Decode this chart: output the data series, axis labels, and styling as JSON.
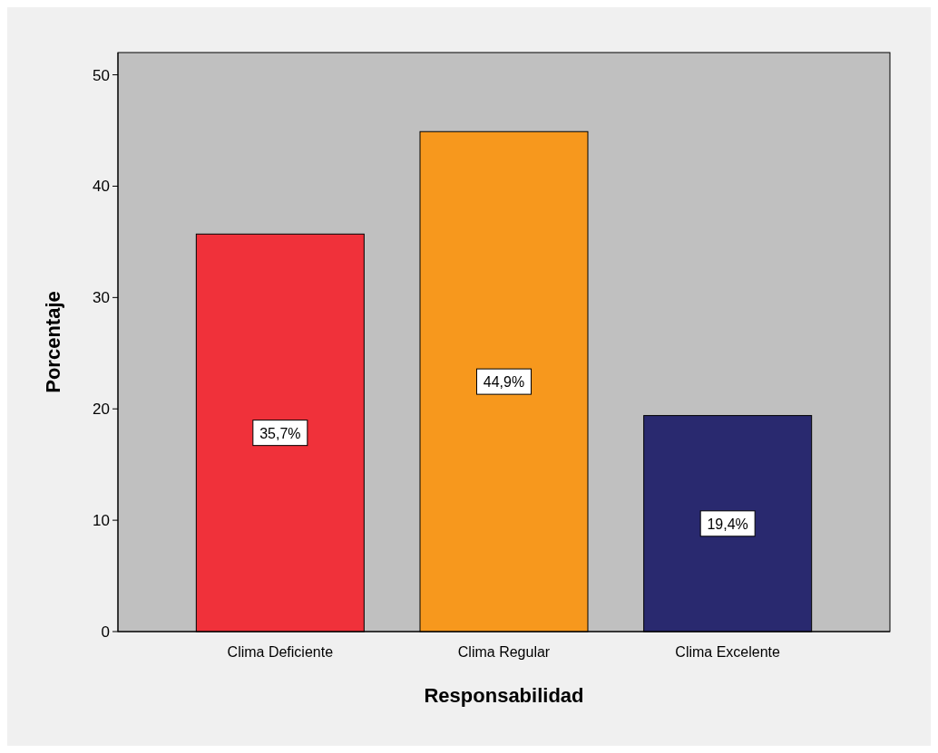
{
  "chart_data": {
    "type": "bar",
    "xlabel": "Responsabilidad",
    "ylabel": "Porcentaje",
    "categories": [
      "Clima Deficiente",
      "Clima Regular",
      "Clima Excelente"
    ],
    "values": [
      35.7,
      44.9,
      19.4
    ],
    "colors": [
      "#f0313a",
      "#f7981d",
      "#29296f"
    ],
    "value_labels": [
      "35,7%",
      "44,9%",
      "19,4%"
    ],
    "ylim": [
      0,
      52
    ],
    "yticks": [
      0,
      10,
      20,
      30,
      40,
      50
    ],
    "grid": false
  }
}
